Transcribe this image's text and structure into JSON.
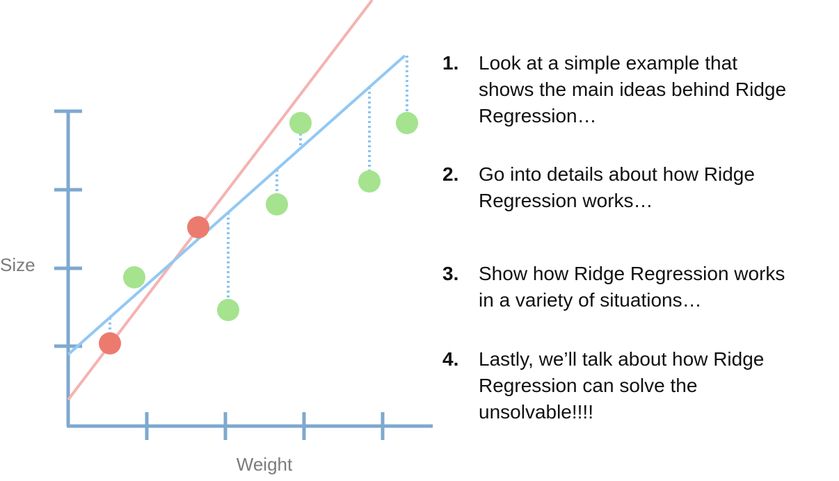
{
  "diagram": {
    "y_axis_label": "Size",
    "x_axis_label": "Weight"
  },
  "steps": [
    {
      "number": "1.",
      "lines": [
        "Look at a simple example that",
        "shows the main ideas behind Ridge",
        "Regression…"
      ]
    },
    {
      "number": "2.",
      "lines": [
        "Go into details about how Ridge",
        "Regression works…"
      ]
    },
    {
      "number": "3.",
      "lines": [
        "Show how Ridge Regression works",
        "in a variety of situations…"
      ]
    },
    {
      "number": "4.",
      "lines": [
        "Lastly, we’ll talk about how Ridge",
        "Regression can solve the",
        "unsolvable!!!!"
      ]
    }
  ]
}
